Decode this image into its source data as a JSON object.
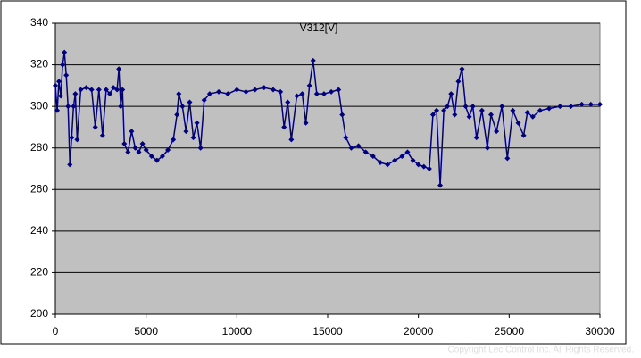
{
  "chart_data": {
    "type": "line",
    "title": "V312[V]",
    "x": [
      0,
      100,
      200,
      300,
      400,
      500,
      600,
      700,
      800,
      900,
      1000,
      1100,
      1200,
      1400,
      1700,
      2000,
      2200,
      2400,
      2600,
      2800,
      3000,
      3200,
      3400,
      3500,
      3600,
      3700,
      3800,
      4000,
      4200,
      4400,
      4600,
      4800,
      5000,
      5300,
      5600,
      5900,
      6200,
      6500,
      6700,
      6800,
      7000,
      7200,
      7400,
      7600,
      7800,
      8000,
      8200,
      8500,
      9000,
      9500,
      10000,
      10500,
      11000,
      11500,
      12000,
      12400,
      12600,
      12800,
      13000,
      13300,
      13600,
      13800,
      14000,
      14200,
      14400,
      14800,
      15200,
      15600,
      15800,
      16000,
      16300,
      16700,
      17100,
      17500,
      17900,
      18300,
      18700,
      19100,
      19400,
      19700,
      20000,
      20300,
      20600,
      20800,
      21000,
      21200,
      21400,
      21600,
      21800,
      22000,
      22200,
      22400,
      22600,
      22800,
      23000,
      23200,
      23500,
      23800,
      24000,
      24300,
      24600,
      24900,
      25200,
      25500,
      25800,
      26000,
      26300,
      26700,
      27200,
      27800,
      28400,
      29000,
      29500,
      30000
    ],
    "series": [
      {
        "name": "V312[V]",
        "color": "#000080",
        "values": [
          310,
          298,
          312,
          305,
          320,
          326,
          315,
          300,
          272,
          285,
          300,
          306,
          284,
          308,
          309,
          308,
          290,
          308,
          286,
          308,
          306,
          309,
          308,
          318,
          300,
          308,
          282,
          278,
          288,
          280,
          278,
          282,
          279,
          276,
          274,
          276,
          279,
          284,
          296,
          306,
          300,
          288,
          302,
          285,
          292,
          280,
          303,
          306,
          307,
          306,
          308,
          307,
          308,
          309,
          308,
          307,
          290,
          302,
          284,
          305,
          306,
          292,
          310,
          322,
          306,
          306,
          307,
          308,
          296,
          285,
          280,
          281,
          278,
          276,
          273,
          272,
          274,
          276,
          278,
          274,
          272,
          271,
          270,
          296,
          298,
          262,
          298,
          300,
          306,
          296,
          312,
          318,
          300,
          295,
          300,
          285,
          298,
          280,
          296,
          288,
          300,
          275,
          298,
          292,
          286,
          297,
          295,
          298,
          299,
          300,
          300,
          301,
          301,
          301
        ]
      }
    ],
    "xlim": [
      0,
      30000
    ],
    "xticks": [
      0,
      5000,
      10000,
      15000,
      20000,
      25000,
      30000
    ],
    "ylim": [
      200,
      340
    ],
    "yticks": [
      200,
      220,
      240,
      260,
      280,
      300,
      320,
      340
    ],
    "grid": true,
    "watermark": "Copyright Lec Control Inc. All Rights Reserved."
  }
}
